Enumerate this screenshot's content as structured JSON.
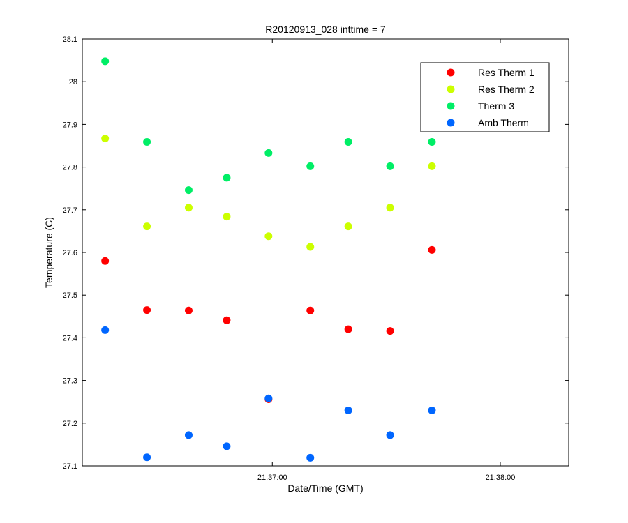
{
  "chart_data": {
    "type": "scatter",
    "title": "R20120913_028 inttime = 7",
    "xlabel": "Date/Time (GMT)",
    "ylabel": "Temperature (C)",
    "xlim": [
      "21:36:10",
      "21:38:18"
    ],
    "ylim": [
      27.1,
      28.1
    ],
    "x_ticks": [
      "21:37:00",
      "21:38:00"
    ],
    "y_ticks": [
      27.1,
      27.2,
      27.3,
      27.4,
      27.5,
      27.6,
      27.7,
      27.8,
      27.9,
      28,
      28.1
    ],
    "y_tick_labels": [
      "27.1",
      "27.2",
      "27.3",
      "27.4",
      "27.5",
      "27.6",
      "27.7",
      "27.8",
      "27.9",
      "28",
      "28.1"
    ],
    "grid": false,
    "legend_position": "top-right",
    "x": [
      "21:36:16",
      "21:36:27",
      "21:36:38",
      "21:36:48",
      "21:36:59",
      "21:37:10",
      "21:37:20",
      "21:37:31",
      "21:37:42"
    ],
    "series": [
      {
        "name": "Res Therm 1",
        "color": "#ff0000",
        "values": [
          27.58,
          27.465,
          27.464,
          27.441,
          27.256,
          27.464,
          27.42,
          27.416,
          27.606
        ]
      },
      {
        "name": "Res Therm 2",
        "color": "#ccff00",
        "values": [
          27.867,
          27.661,
          27.705,
          27.684,
          27.638,
          27.613,
          27.661,
          27.705,
          27.802
        ]
      },
      {
        "name": "Therm 3",
        "color": "#00ee66",
        "values": [
          28.048,
          27.859,
          27.746,
          27.775,
          27.833,
          27.802,
          27.859,
          27.802,
          27.859
        ]
      },
      {
        "name": "Amb Therm",
        "color": "#0066ff",
        "values": [
          27.418,
          27.12,
          27.172,
          27.146,
          27.258,
          27.119,
          27.23,
          27.172,
          27.23
        ]
      }
    ]
  }
}
